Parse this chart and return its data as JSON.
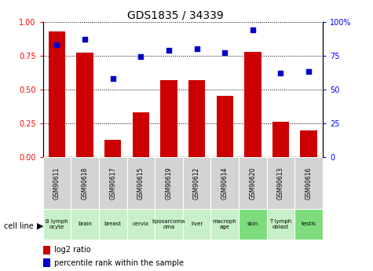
{
  "title": "GDS1835 / 34339",
  "gsm_labels": [
    "GSM90611",
    "GSM90618",
    "GSM90617",
    "GSM90615",
    "GSM90619",
    "GSM90612",
    "GSM90614",
    "GSM90620",
    "GSM90613",
    "GSM90616"
  ],
  "cell_lines": [
    "B lymph\nocyte",
    "brain",
    "breast",
    "cervix",
    "liposarcoma\n",
    "liver",
    "macrophage\n",
    "skin",
    "T lymphoblast\n",
    "testis"
  ],
  "cell_line_colors": [
    "#c8f0c8",
    "#c8f0c8",
    "#c8f0c8",
    "#c8f0c8",
    "#c8f0c8",
    "#c8f0c8",
    "#c8f0c8",
    "#7ddd7d",
    "#c8f0c8",
    "#7ddd7d"
  ],
  "log2_ratio": [
    0.93,
    0.77,
    0.13,
    0.33,
    0.57,
    0.57,
    0.45,
    0.78,
    0.26,
    0.2
  ],
  "percentile_rank": [
    83,
    87,
    58,
    74,
    79,
    80,
    77,
    94,
    62,
    63
  ],
  "bar_color": "#cc0000",
  "dot_color": "#0000cc",
  "ylim_left": [
    0,
    1.0
  ],
  "ylim_right": [
    0,
    100
  ],
  "yticks_left": [
    0,
    0.25,
    0.5,
    0.75,
    1.0
  ],
  "yticks_right": [
    0,
    25,
    50,
    75,
    100
  ],
  "gsm_bg_color": "#d3d3d3",
  "plot_bg_color": "#ffffff"
}
